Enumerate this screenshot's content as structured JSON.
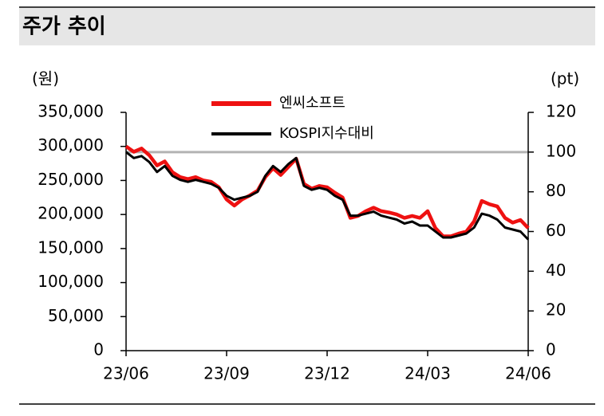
{
  "chart_data": {
    "type": "line",
    "title": "주가 추이",
    "y_label": "(원)",
    "y2_label": "(pt)",
    "categories": [
      "23/06",
      null,
      null,
      null,
      null,
      null,
      null,
      null,
      null,
      null,
      null,
      null,
      null,
      "23/09",
      null,
      null,
      null,
      null,
      null,
      null,
      null,
      null,
      null,
      null,
      null,
      null,
      "23/12",
      null,
      null,
      null,
      null,
      null,
      null,
      null,
      null,
      null,
      null,
      null,
      null,
      "24/03",
      null,
      null,
      null,
      null,
      null,
      null,
      null,
      null,
      null,
      null,
      null,
      null,
      "24/06"
    ],
    "series": [
      {
        "name": "엔씨소프트",
        "color": "#ee1111",
        "axis": "y",
        "values": [
          300000,
          292000,
          297000,
          287000,
          272000,
          278000,
          262000,
          255000,
          252000,
          255000,
          250000,
          248000,
          240000,
          222000,
          213000,
          222000,
          228000,
          235000,
          255000,
          268000,
          258000,
          270000,
          282000,
          245000,
          238000,
          242000,
          240000,
          232000,
          225000,
          195000,
          198000,
          205000,
          210000,
          205000,
          203000,
          200000,
          195000,
          198000,
          195000,
          205000,
          180000,
          168000,
          168000,
          172000,
          175000,
          190000,
          220000,
          215000,
          212000,
          195000,
          188000,
          192000,
          180000
        ]
      },
      {
        "name": "KOSPI지수대비",
        "color": "#000000",
        "axis": "y2",
        "values": [
          100,
          97,
          98,
          95,
          90,
          93,
          88,
          86,
          85,
          86,
          85,
          84,
          82,
          78,
          76,
          77,
          78,
          80,
          88,
          93,
          90,
          94,
          97,
          83,
          81,
          82,
          81,
          78,
          76,
          68,
          68,
          69,
          70,
          68,
          67,
          66,
          64,
          65,
          63,
          63,
          60,
          57,
          57,
          58,
          59,
          62,
          69,
          68,
          66,
          62,
          61,
          60,
          56
        ]
      }
    ],
    "ylim": [
      0,
      350000
    ],
    "yticks": [
      0,
      {
        "value": 50000,
        "label": "50,000"
      },
      {
        "value": 100000,
        "label": "100,000"
      },
      {
        "value": 150000,
        "label": "150,000"
      },
      {
        "value": 200000,
        "label": "200,000"
      },
      {
        "value": 250000,
        "label": "250,000"
      },
      {
        "value": 300000,
        "label": "300,000"
      },
      {
        "value": 350000,
        "label": "350,000"
      }
    ],
    "y2lim": [
      0,
      120
    ],
    "y2ticks": [
      0,
      20,
      40,
      60,
      80,
      100,
      120
    ],
    "reference_line": {
      "axis": "y2",
      "value": 100,
      "color": "#b3b3b3"
    },
    "legend": "top"
  }
}
